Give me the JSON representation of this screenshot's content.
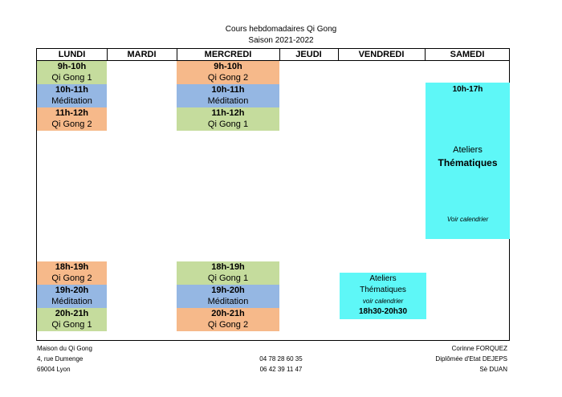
{
  "header": {
    "title": "Cours hebdomadaires Qi Gong",
    "season": "Saison 2021-2022"
  },
  "days": [
    "LUNDI",
    "MARDI",
    "MERCREDI",
    "JEUDI",
    "VENDREDI",
    "SAMEDI"
  ],
  "lundi": {
    "slot1": {
      "time": "9h-10h",
      "name": "Qi Gong 1"
    },
    "slot2": {
      "time": "10h-11h",
      "name": "Méditation"
    },
    "slot3": {
      "time": "11h-12h",
      "name": "Qi Gong 2"
    },
    "slot4": {
      "time": "18h-19h",
      "name": "Qi Gong 2"
    },
    "slot5": {
      "time": "19h-20h",
      "name": "Méditation"
    },
    "slot6": {
      "time": "20h-21h",
      "name": "Qi Gong 1"
    }
  },
  "mercredi": {
    "slot1": {
      "time": "9h-10h",
      "name": "Qi Gong 2"
    },
    "slot2": {
      "time": "10h-11h",
      "name": "Méditation"
    },
    "slot3": {
      "time": "11h-12h",
      "name": "Qi Gong 1"
    },
    "slot4": {
      "time": "18h-19h",
      "name": "Qi Gong 1"
    },
    "slot5": {
      "time": "19h-20h",
      "name": "Méditation"
    },
    "slot6": {
      "time": "20h-21h",
      "name": "Qi Gong 2"
    }
  },
  "vendredi": {
    "line1": "Ateliers",
    "line2": "Thématiques",
    "note": "voir calendrier",
    "time": "18h30-20h30"
  },
  "samedi": {
    "time": "10h-17h",
    "line1": "Ateliers",
    "line2": "Thématiques",
    "note": "Voir calendrier"
  },
  "footer": {
    "left": [
      "Maison du Qi Gong",
      "4, rue Dumenge",
      "69004 Lyon"
    ],
    "phones": [
      "04 78 28 60 35",
      "06 42 39 11 47"
    ],
    "right": [
      "Corinne FORQUEZ",
      "Diplômée d'Etat DEJEPS",
      "Sè DUAN"
    ]
  },
  "colors": {
    "green": "#c5dc9d",
    "orange": "#f6b98a",
    "blue": "#95b7e3",
    "cyan": "#5ef7f7"
  }
}
